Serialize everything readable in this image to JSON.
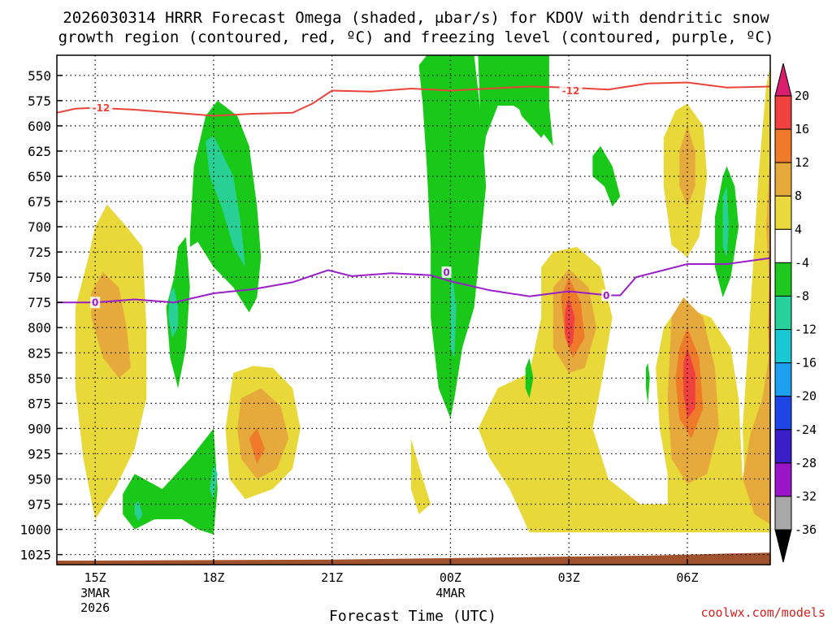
{
  "chart_data": {
    "type": "heatmap",
    "title_line1": "2026030314 HRRR Forecast Omega (shaded, μbar/s) for KDOV with dendritic snow",
    "title_line2": "growth region (contoured, red, ºC) and freezing level (contoured, purple, ºC)",
    "xlabel": "Forecast Time (UTC)",
    "credit": "coolwx.com/models",
    "x_range_hours": [
      -0.97,
      17.1
    ],
    "x_ticks": [
      {
        "hour": 0,
        "label": "15Z",
        "sub1": "3MAR",
        "sub2": "2026"
      },
      {
        "hour": 3,
        "label": "18Z",
        "sub1": "",
        "sub2": ""
      },
      {
        "hour": 6,
        "label": "21Z",
        "sub1": "",
        "sub2": ""
      },
      {
        "hour": 9,
        "label": "00Z",
        "sub1": "4MAR",
        "sub2": ""
      },
      {
        "hour": 12,
        "label": "03Z",
        "sub1": "",
        "sub2": ""
      },
      {
        "hour": 15,
        "label": "06Z",
        "sub1": "",
        "sub2": ""
      }
    ],
    "y_ticks": [
      "550",
      "575",
      "600",
      "625",
      "650",
      "675",
      "700",
      "725",
      "750",
      "775",
      "800",
      "825",
      "850",
      "875",
      "900",
      "925",
      "950",
      "975",
      "1000",
      "1025"
    ],
    "y_range_mb": [
      530,
      1035
    ],
    "colorbar": {
      "labels": [
        "20",
        "16",
        "12",
        "8",
        "4",
        "-4",
        "-8",
        "-12",
        "-16",
        "-20",
        "-24",
        "-28",
        "-32",
        "-36"
      ],
      "colors": [
        "#d81e6c",
        "#f04040",
        "#ee7a2a",
        "#e6aa3c",
        "#ead83c",
        "#ffffff",
        "#1ec81e",
        "#26d29a",
        "#18c8d2",
        "#1ea0f0",
        "#1e46e6",
        "#3a1ec8",
        "#9a14c8",
        "#a8a8a8",
        "#000000"
      ]
    },
    "shading": {
      "yellow": "#e8d83a",
      "orange_light": "#e6aa3c",
      "orange": "#ee7a2a",
      "red": "#f04040",
      "green": "#19c819",
      "teal": "#28d096",
      "cyan": "#1ec8d2",
      "terrain": "#a0522d"
    },
    "dendritic_line": {
      "color": "#e8443a",
      "label": "-12",
      "points": [
        [
          -0.97,
          587
        ],
        [
          -0.5,
          583
        ],
        [
          0,
          582
        ],
        [
          1,
          584
        ],
        [
          2,
          587
        ],
        [
          3,
          590
        ],
        [
          4,
          588
        ],
        [
          5,
          587
        ],
        [
          5.5,
          578
        ],
        [
          6,
          565
        ],
        [
          7,
          566
        ],
        [
          8,
          563
        ],
        [
          9,
          565
        ],
        [
          10,
          563
        ],
        [
          11,
          561
        ],
        [
          12,
          562
        ],
        [
          13,
          564
        ],
        [
          14,
          558
        ],
        [
          15,
          557
        ],
        [
          16,
          562
        ],
        [
          17.1,
          561
        ]
      ],
      "labels_at": [
        [
          0.15,
          582
        ],
        [
          12.05,
          565
        ]
      ]
    },
    "freezing_line": {
      "color": "#9a1ec8",
      "label": "0",
      "points": [
        [
          -0.97,
          775
        ],
        [
          0,
          775
        ],
        [
          1,
          772
        ],
        [
          2,
          775
        ],
        [
          3,
          766
        ],
        [
          4,
          762
        ],
        [
          5,
          755
        ],
        [
          5.9,
          743
        ],
        [
          6.5,
          749
        ],
        [
          7.5,
          746
        ],
        [
          8.5,
          748
        ],
        [
          9,
          754
        ],
        [
          10,
          763
        ],
        [
          11,
          769
        ],
        [
          12,
          764
        ],
        [
          13,
          768
        ],
        [
          13.3,
          768
        ],
        [
          13.7,
          750
        ],
        [
          15,
          737
        ],
        [
          16,
          737
        ],
        [
          17.1,
          731
        ]
      ],
      "labels_at": [
        [
          0,
          775
        ],
        [
          8.9,
          745
        ],
        [
          12.95,
          768
        ]
      ]
    }
  }
}
